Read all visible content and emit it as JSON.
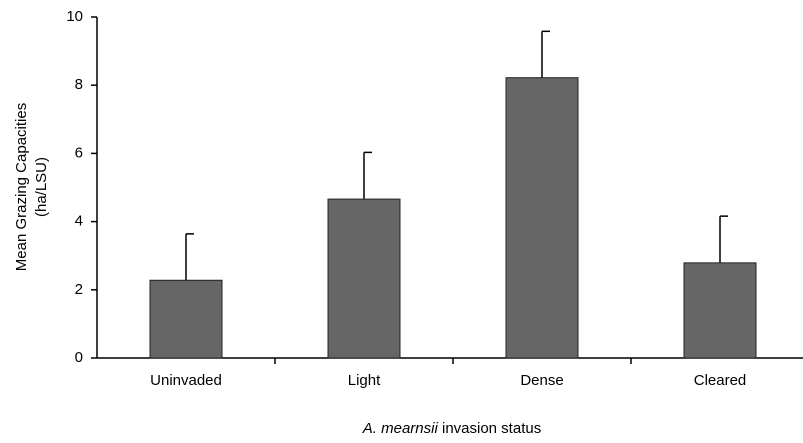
{
  "chart_data": {
    "type": "bar",
    "ylabel": [
      "Mean Grazing Capacities",
      "(ha/LSU)"
    ],
    "xlabel": {
      "italic": "A. mearnsii",
      "rest": "invasion status"
    },
    "categories": [
      "Uninvaded",
      "Light",
      "Dense",
      "Cleared"
    ],
    "values": [
      2.28,
      4.66,
      8.22,
      2.79
    ],
    "errors": [
      1.36,
      1.37,
      1.36,
      1.37
    ],
    "color": "#666666",
    "ylim": [
      0,
      10
    ],
    "yticks": [
      0,
      2,
      4,
      6,
      8,
      10
    ],
    "grid": false
  }
}
